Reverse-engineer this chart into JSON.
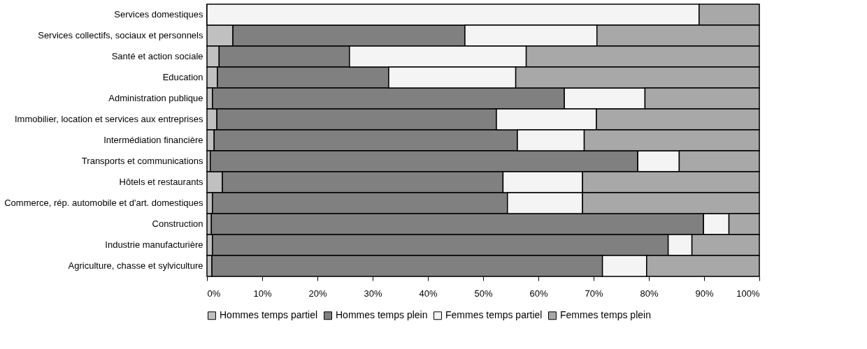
{
  "chart_data": {
    "type": "bar",
    "orientation": "horizontal",
    "stacked": true,
    "categories": [
      "Services domestiques",
      "Services collectifs, sociaux et personnels",
      "Santé et action sociale",
      "Education",
      "Administration publique",
      "Immobilier, location et services aux entreprises",
      "Intermédiation financière",
      "Transports et communications",
      "Hôtels et restaurants",
      "Commerce, rép. automobile et d'art. domestiques",
      "Construction",
      "Industrie manufacturière",
      "Agriculture, chasse et sylviculture"
    ],
    "series": [
      {
        "name": "Hommes temps partiel",
        "color": "#c0c0c0",
        "values": [
          0,
          4.7,
          2.2,
          1.9,
          1.0,
          1.8,
          1.3,
          0.6,
          2.8,
          1.0,
          0.8,
          1.0,
          0.9
        ]
      },
      {
        "name": "Hommes temps plein",
        "color": "#808080",
        "values": [
          0,
          42.0,
          23.6,
          31.0,
          63.7,
          50.6,
          54.9,
          77.4,
          50.8,
          53.4,
          89.1,
          82.5,
          70.7
        ]
      },
      {
        "name": "Femmes temps partiel",
        "color": "#f4f4f4",
        "values": [
          89.1,
          23.9,
          32.0,
          23.0,
          14.6,
          18.1,
          12.1,
          7.5,
          14.4,
          13.6,
          4.6,
          4.3,
          8.0
        ]
      },
      {
        "name": "Femmes temps plein",
        "color": "#a8a8a8",
        "values": [
          10.9,
          29.4,
          42.2,
          44.1,
          20.7,
          29.5,
          31.7,
          14.5,
          32.0,
          32.0,
          5.5,
          12.2,
          20.4
        ]
      }
    ],
    "xlim": [
      0,
      100
    ],
    "xticks": [
      {
        "value": 0,
        "label": "0%"
      },
      {
        "value": 10,
        "label": "10%"
      },
      {
        "value": 20,
        "label": "20%"
      },
      {
        "value": 30,
        "label": "30%"
      },
      {
        "value": 40,
        "label": "40%"
      },
      {
        "value": 50,
        "label": "50%"
      },
      {
        "value": 60,
        "label": "60%"
      },
      {
        "value": 70,
        "label": "70%"
      },
      {
        "value": 80,
        "label": "80%"
      },
      {
        "value": 90,
        "label": "90%"
      },
      {
        "value": 100,
        "label": "100%"
      }
    ],
    "legend": "bottom"
  }
}
